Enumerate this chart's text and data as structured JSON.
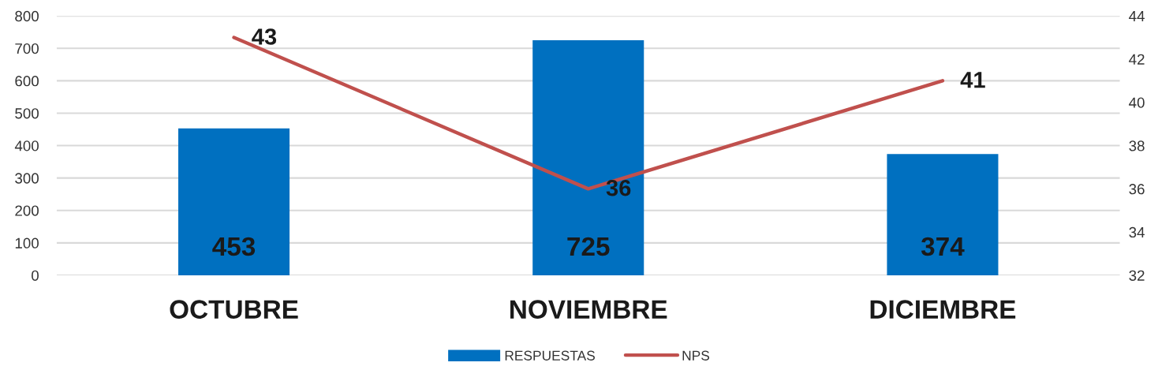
{
  "chart_data": {
    "type": "bar",
    "categories": [
      "OCTUBRE",
      "NOVIEMBRE",
      "DICIEMBRE"
    ],
    "series": [
      {
        "name": "RESPUESTAS",
        "color": "#0070c0",
        "values": [
          453,
          725,
          374
        ]
      },
      {
        "name": "NPS",
        "type": "line",
        "axis": "y2",
        "color": "#c0504d",
        "values": [
          43,
          36,
          41
        ]
      }
    ],
    "ylim": [
      0,
      800
    ],
    "yticks": [
      0,
      100,
      200,
      300,
      400,
      500,
      600,
      700,
      800
    ],
    "y2lim": [
      32,
      44
    ],
    "y2ticks": [
      32,
      34,
      36,
      38,
      40,
      42,
      44
    ],
    "grid": "y",
    "legend": "bottom",
    "data_labels": true,
    "marker": "none",
    "line_style": "solid"
  }
}
